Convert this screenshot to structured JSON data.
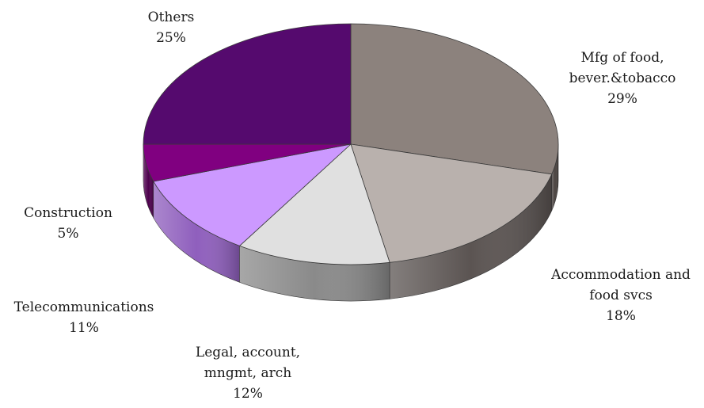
{
  "chart_data": {
    "type": "pie",
    "style": "3d-exploded-none",
    "start_angle_deg": -90,
    "direction": "clockwise",
    "slices": [
      {
        "name": "Mfg of food, bever.&tobacco",
        "label_lines": [
          "Mfg of food,",
          "bever.&tobacco"
        ],
        "percent_label": "29%",
        "value": 29,
        "top_color": "#8c827d",
        "side_color": "#4a4340"
      },
      {
        "name": "Accommodation and food svcs",
        "label_lines": [
          "Accommodation and",
          "food svcs"
        ],
        "percent_label": "18%",
        "value": 18,
        "top_color": "#b9b1ad",
        "side_color": "#5b5452"
      },
      {
        "name": "Legal, account, mngmt, arch",
        "label_lines": [
          "Legal,  account,",
          "mngmt, arch"
        ],
        "percent_label": "12%",
        "value": 12,
        "top_color": "#e0e0e0",
        "side_color": "#8a8a8a"
      },
      {
        "name": "Telecommunications",
        "label_lines": [
          "Telecommunications"
        ],
        "percent_label": "11%",
        "value": 11,
        "top_color": "#cc99ff",
        "side_color": "#8f5fbd"
      },
      {
        "name": "Construction",
        "label_lines": [
          "Construction"
        ],
        "percent_label": "5%",
        "value": 5,
        "top_color": "#800080",
        "side_color": "#4d004d"
      },
      {
        "name": "Others",
        "label_lines": [
          "Others"
        ],
        "percent_label": "25%",
        "value": 25,
        "top_color": "#550a6e",
        "side_color": "#2e053d"
      }
    ],
    "legend": "none",
    "title": ""
  }
}
